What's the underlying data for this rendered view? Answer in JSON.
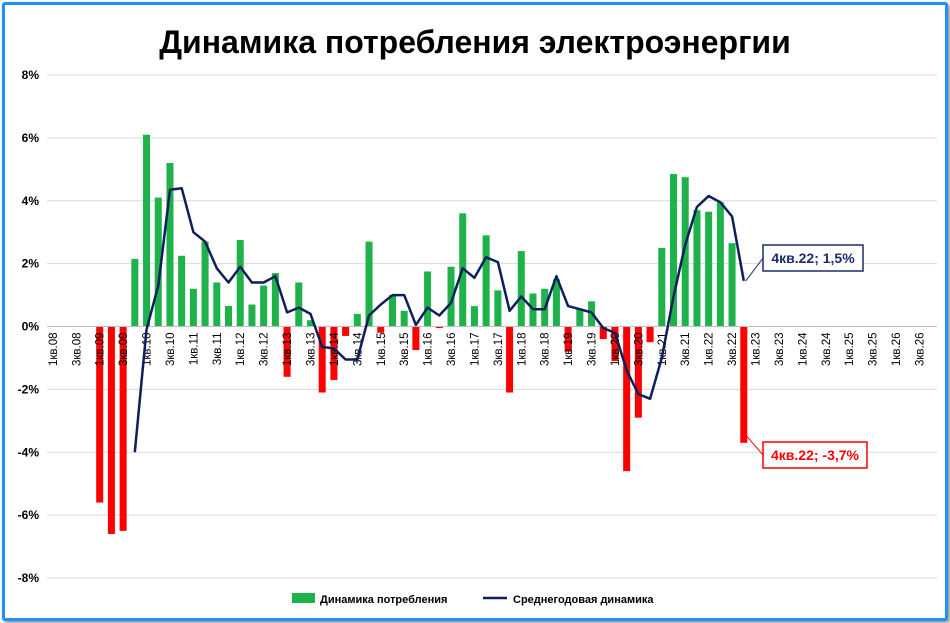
{
  "chart_data": {
    "type": "bar+line",
    "title": "Динамика потребления электроэнергии",
    "categories": [
      "1кв.08",
      "2кв.08",
      "3кв.08",
      "4кв.08",
      "1кв.09",
      "2кв.09",
      "3кв.09",
      "4кв.09",
      "1кв.10",
      "2кв.10",
      "3кв.10",
      "4кв.10",
      "1кв.11",
      "2кв.11",
      "3кв.11",
      "4кв.11",
      "1кв.12",
      "2кв.12",
      "3кв.12",
      "4кв.12",
      "1кв.13",
      "2кв.13",
      "3кв.13",
      "4кв.13",
      "1кв.14",
      "2кв.14",
      "3кв.14",
      "4кв.14",
      "1кв.15",
      "2кв.15",
      "3кв.15",
      "4кв.15",
      "1кв.16",
      "2кв.16",
      "3кв.16",
      "4кв.16",
      "1кв.17",
      "2кв.17",
      "3кв.17",
      "4кв.17",
      "1кв.18",
      "2кв.18",
      "3кв.18",
      "4кв.18",
      "1кв.19",
      "2кв.19",
      "3кв.19",
      "4кв.19",
      "1кв.20",
      "2кв.20",
      "3кв.20",
      "4кв.20",
      "1кв.21",
      "2кв.21",
      "3кв.21",
      "4кв.21",
      "1кв.22",
      "2кв.22",
      "3кв.22",
      "4кв.22",
      "1кв.23",
      "2кв.23",
      "3кв.23",
      "4кв.23",
      "1кв.24",
      "2кв.24",
      "3кв.24",
      "4кв.24",
      "1кв.25",
      "2кв.25",
      "3кв.25",
      "4кв.25",
      "1кв.26",
      "2кв.26",
      "3кв.26",
      "4кв.26"
    ],
    "x_tick_labels": [
      "1кв.08",
      "3кв.08",
      "1кв.09",
      "3кв.09",
      "1кв.10",
      "3кв.10",
      "1кв.11",
      "3кв.11",
      "1кв.12",
      "3кв.12",
      "1кв.13",
      "3кв.13",
      "1кв.14",
      "3кв.14",
      "1кв.15",
      "3кв.15",
      "1кв.16",
      "3кв.16",
      "1кв.17",
      "3кв.17",
      "1кв.18",
      "3кв.18",
      "1кв.19",
      "3кв.19",
      "1кв.20",
      "3кв.20",
      "1кв.21",
      "3кв.21",
      "1кв.22",
      "3кв.22",
      "1кв.23",
      "3кв.23",
      "1кв.24",
      "3кв.24",
      "1кв.25",
      "3кв.25",
      "1кв.26",
      "3кв.26"
    ],
    "y_tick_labels": [
      "8%",
      "6%",
      "4%",
      "2%",
      "0%",
      "-2%",
      "-4%",
      "-6%",
      "-8%"
    ],
    "ylim": [
      -8,
      8
    ],
    "y_ticks": [
      8,
      6,
      4,
      2,
      0,
      -2,
      -4,
      -6,
      -8
    ],
    "grid": true,
    "legend_position": "bottom",
    "series": [
      {
        "name": "Динамика потребления",
        "type": "bar",
        "positive_color": "#1fb24a",
        "negative_color": "#ff0000",
        "values": [
          null,
          null,
          null,
          null,
          -5.6,
          -6.6,
          -6.5,
          2.15,
          6.1,
          4.1,
          5.2,
          2.25,
          1.2,
          2.7,
          1.4,
          0.65,
          2.75,
          0.7,
          1.3,
          1.7,
          -1.6,
          1.4,
          0.2,
          -2.1,
          -1.7,
          -0.3,
          0.4,
          2.7,
          -0.2,
          1.0,
          0.5,
          -0.75,
          1.75,
          -0.05,
          1.9,
          3.6,
          0.65,
          2.9,
          1.15,
          -2.1,
          2.4,
          1.05,
          1.2,
          1.5,
          -0.8,
          0.55,
          0.8,
          -0.4,
          -1.1,
          -4.6,
          -2.9,
          -0.5,
          2.5,
          4.85,
          4.75,
          3.7,
          3.65,
          3.95,
          2.65,
          -3.7,
          null,
          null,
          null,
          null,
          null,
          null,
          null,
          null,
          null,
          null,
          null,
          null,
          null,
          null,
          null,
          null
        ]
      },
      {
        "name": "Среднегодовая динамика",
        "type": "line",
        "color": "#0d1f5c",
        "values": [
          null,
          null,
          null,
          null,
          null,
          null,
          null,
          -4.0,
          -0.1,
          1.3,
          4.35,
          4.4,
          3.0,
          2.7,
          1.85,
          1.4,
          1.9,
          1.4,
          1.4,
          1.6,
          0.45,
          0.6,
          0.4,
          -0.65,
          -0.7,
          -1.05,
          -1.05,
          0.35,
          0.7,
          1.0,
          1.0,
          0.05,
          0.6,
          0.35,
          0.75,
          1.85,
          1.55,
          2.2,
          2.05,
          0.5,
          0.95,
          0.55,
          0.55,
          1.6,
          0.65,
          0.55,
          0.45,
          -0.05,
          -0.2,
          -1.4,
          -2.15,
          -2.3,
          -1.0,
          0.95,
          2.6,
          3.8,
          4.15,
          3.95,
          3.5,
          1.45,
          null,
          null,
          null,
          null,
          null,
          null,
          null,
          null,
          null,
          null,
          null,
          null,
          null,
          null,
          null,
          null
        ]
      }
    ],
    "annotations": [
      {
        "text": "4кв.22; 1,5%",
        "color": "#1a2c6b",
        "series": "line"
      },
      {
        "text": "4кв.22; -3,7%",
        "color": "#ff0000",
        "series": "bar"
      }
    ]
  }
}
